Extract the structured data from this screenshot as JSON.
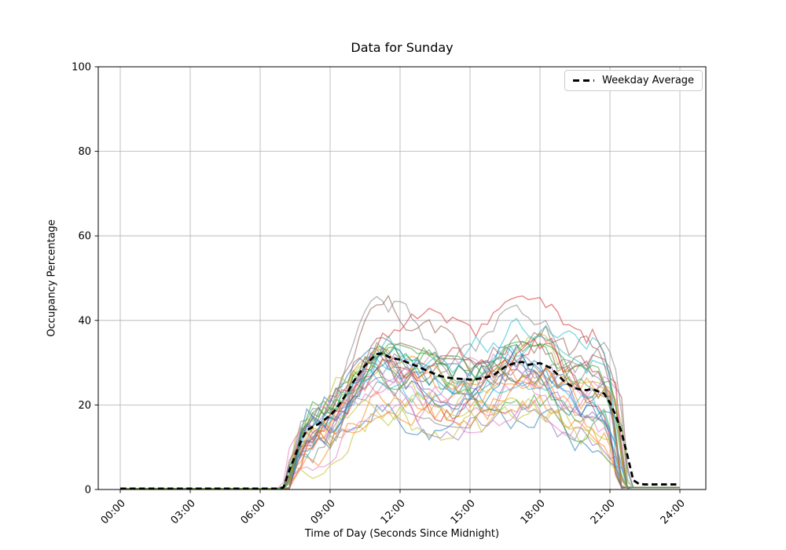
{
  "figure": {
    "title": "Data for Sunday",
    "xlabel": "Time of Day (Seconds Since Midnight)",
    "ylabel": "Occupancy Percentage",
    "background_color": "#ffffff"
  },
  "legend": {
    "label": "Weekday Average",
    "line_color": "#000000",
    "line_style": "dashed",
    "border_color": "#cccccc",
    "position": "upper-right"
  },
  "chart_data": {
    "type": "line",
    "title": "Data for Sunday",
    "xlabel": "Time of Day (Seconds Since Midnight)",
    "ylabel": "Occupancy Percentage",
    "grid": true,
    "grid_color": "#b0b0b0",
    "spine_color": "#000000",
    "ylim": [
      0,
      100
    ],
    "xlim_hours": [
      0,
      24
    ],
    "x_tick_hours": [
      0,
      3,
      6,
      9,
      12,
      15,
      18,
      21,
      24
    ],
    "x_tick_labels": [
      "00:00",
      "03:00",
      "06:00",
      "09:00",
      "12:00",
      "15:00",
      "18:00",
      "21:00",
      "24:00"
    ],
    "y_ticks": [
      0,
      20,
      40,
      60,
      80,
      100
    ],
    "x_start_hour": 0,
    "x_step_hours": 0.25,
    "series": [
      {
        "name": "Weekday Average",
        "style": "dashed",
        "color": "#000000",
        "line_width": 2.8,
        "values": [
          0.2,
          0.2,
          0.2,
          0.2,
          0.2,
          0.2,
          0.2,
          0.2,
          0.2,
          0.2,
          0.2,
          0.2,
          0.2,
          0.2,
          0.2,
          0.2,
          0.2,
          0.2,
          0.2,
          0.2,
          0.2,
          0.2,
          0.2,
          0.2,
          0.2,
          0.2,
          0.2,
          0.2,
          0.5,
          4.5,
          8,
          11.5,
          14,
          14.8,
          15.5,
          16.5,
          17.5,
          19,
          21,
          23,
          25.5,
          27.5,
          29.3,
          30.8,
          32,
          32.2,
          31.4,
          31,
          30.7,
          30.2,
          29.7,
          29.1,
          28.5,
          27.9,
          27.3,
          26.8,
          26.5,
          26.3,
          26.2,
          26.1,
          26,
          26.1,
          26.3,
          26.6,
          27,
          28,
          29,
          29.6,
          30,
          30.2,
          29.5,
          29.7,
          29.9,
          29.3,
          28.6,
          27.2,
          25.8,
          24.8,
          24,
          23.6,
          23.5,
          23.8,
          23.2,
          22.7,
          20.5,
          17.5,
          13.5,
          8,
          2.2,
          1.3,
          1.2,
          1.2,
          1.2,
          1.2,
          1.2,
          1.2,
          1.2
        ]
      }
    ],
    "individual_traces": {
      "note": "many overlapping noisy single-day occupancy traces around the average",
      "count": 33,
      "seed": 7,
      "opacity": 0.55,
      "line_width": 1.4,
      "palette": [
        "#1f77b4",
        "#ff7f0e",
        "#2ca02c",
        "#d62728",
        "#9467bd",
        "#8c564b",
        "#e377c2",
        "#7f7f7f",
        "#bcbd22",
        "#17becf"
      ],
      "start_hour_range": [
        6.85,
        7.3
      ],
      "end_hour_range": [
        21.35,
        21.95
      ],
      "scale_range": [
        0.72,
        1.3
      ],
      "walk_step": 3.2,
      "walk_max": 8.5,
      "value_max": 53,
      "baseline_value": 0.25,
      "tail_value": 0.45
    }
  }
}
